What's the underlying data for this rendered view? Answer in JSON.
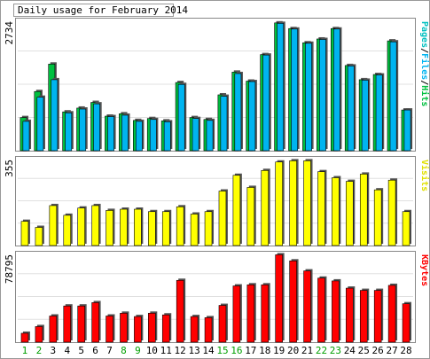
{
  "chart_data": {
    "type": "bar",
    "title": "Daily usage for February 2014",
    "categories": [
      "1",
      "2",
      "3",
      "4",
      "5",
      "6",
      "7",
      "8",
      "9",
      "10",
      "11",
      "12",
      "13",
      "14",
      "15",
      "16",
      "17",
      "18",
      "19",
      "20",
      "21",
      "22",
      "23",
      "24",
      "25",
      "26",
      "27",
      "28"
    ],
    "weekend_days": [
      "1",
      "2",
      "8",
      "9",
      "15",
      "16",
      "22",
      "23"
    ],
    "panels": [
      {
        "name": "hits_files_pages",
        "ymax_label": "2734",
        "ylim": [
          0,
          2734
        ],
        "legend": [
          "Pages",
          "Files",
          "Hits"
        ],
        "series": [
          {
            "name": "Hits",
            "color": "#00c040",
            "values": [
              700,
              1250,
              1830,
              820,
              900,
              1020,
              730,
              780,
              640,
              680,
              630,
              1440,
              700,
              660,
              1180,
              1660,
              1470,
              2030,
              2700,
              2580,
              2280,
              2360,
              2580,
              1800,
              1500,
              1610,
              2320,
              860
            ]
          },
          {
            "name": "Files",
            "color": "#00b4f0",
            "values": [
              620,
              1130,
              1500,
              800,
              880,
              990,
              720,
              750,
              620,
              660,
              610,
              1400,
              680,
              640,
              1150,
              1630,
              1460,
              2020,
              2690,
              2570,
              2270,
              2350,
              2570,
              1790,
              1490,
              1600,
              2300,
              860
            ]
          },
          {
            "name": "Pages",
            "color": "#00b4f0",
            "values": [
              0,
              0,
              0,
              0,
              0,
              0,
              0,
              0,
              0,
              0,
              0,
              0,
              0,
              0,
              0,
              0,
              0,
              0,
              0,
              0,
              0,
              0,
              0,
              0,
              0,
              0,
              0,
              0
            ]
          }
        ]
      },
      {
        "name": "visits",
        "ymax_label": "355",
        "ylim": [
          0,
          355
        ],
        "legend": [
          "Visits"
        ],
        "series": [
          {
            "name": "Visits",
            "color": "#ffff00",
            "values": [
              100,
              75,
              165,
              125,
              155,
              165,
              145,
              150,
              150,
              140,
              140,
              160,
              130,
              140,
              225,
              290,
              240,
              310,
              345,
              350,
              350,
              305,
              280,
              265,
              295,
              230,
              270,
              140
            ]
          }
        ]
      },
      {
        "name": "kbytes",
        "ymax_label": "78795",
        "ylim": [
          0,
          78795
        ],
        "legend": [
          "KBytes"
        ],
        "series": [
          {
            "name": "KBytes",
            "color": "#ff0000",
            "values": [
              8000,
              14000,
              23500,
              32500,
              32500,
              35500,
              23500,
              26000,
              23000,
              26000,
              24500,
              55500,
              23000,
              22000,
              33000,
              50500,
              51500,
              51500,
              78500,
              73000,
              64000,
              57500,
              55000,
              48500,
              46500,
              46500,
              51000,
              34500
            ]
          }
        ]
      }
    ]
  }
}
